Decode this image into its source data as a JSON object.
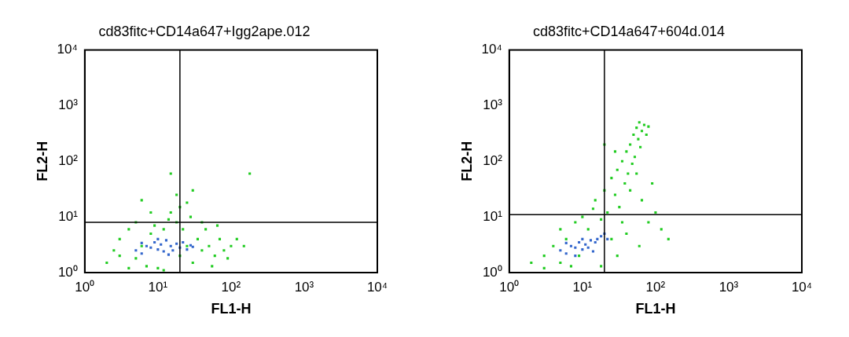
{
  "chart_data": [
    {
      "type": "scatter",
      "title": "cd83fitc+CD14a647+Igg2ape.012",
      "x_label": "FL1-H",
      "y_label": "FL2-H",
      "log": true,
      "grid": false,
      "marker": "square",
      "xlim": [
        1,
        10000
      ],
      "ylim": [
        1,
        10000
      ],
      "xticks": [
        {
          "value": 1,
          "label": "10⁰"
        },
        {
          "value": 10,
          "label": "10¹"
        },
        {
          "value": 100,
          "label": "10²"
        },
        {
          "value": 1000,
          "label": "10³"
        },
        {
          "value": 10000,
          "label": "10⁴"
        }
      ],
      "yticks": [
        {
          "value": 1,
          "label": "10⁰"
        },
        {
          "value": 10,
          "label": "10¹"
        },
        {
          "value": 100,
          "label": "10²"
        },
        {
          "value": 1000,
          "label": "10³"
        },
        {
          "value": 10000,
          "label": "10⁴"
        }
      ],
      "gates": {
        "x": 20,
        "y": 8
      },
      "series": [
        {
          "color": "#22cc22",
          "values": [
            [
              2,
              1.5
            ],
            [
              3,
              2
            ],
            [
              3,
              4
            ],
            [
              4,
              1.2
            ],
            [
              4,
              6
            ],
            [
              5,
              1.8
            ],
            [
              5,
              8
            ],
            [
              6,
              3
            ],
            [
              7,
              1.3
            ],
            [
              8,
              5
            ],
            [
              9,
              7
            ],
            [
              10,
              1.2
            ],
            [
              12,
              6
            ],
            [
              14,
              9
            ],
            [
              15,
              12
            ],
            [
              18,
              8
            ],
            [
              20,
              2
            ],
            [
              22,
              6
            ],
            [
              25,
              3
            ],
            [
              28,
              10
            ],
            [
              30,
              1.5
            ],
            [
              35,
              4
            ],
            [
              40,
              2.5
            ],
            [
              45,
              6
            ],
            [
              50,
              3
            ],
            [
              60,
              2
            ],
            [
              70,
              4
            ],
            [
              80,
              2.5
            ],
            [
              100,
              3
            ],
            [
              120,
              4
            ],
            [
              150,
              3
            ],
            [
              18,
              25
            ],
            [
              20,
              15
            ],
            [
              6,
              20
            ],
            [
              15,
              60
            ],
            [
              180,
              60
            ],
            [
              40,
              8
            ],
            [
              55,
              1.3
            ],
            [
              2.5,
              2.5
            ],
            [
              12,
              1.1
            ],
            [
              25,
              18
            ],
            [
              65,
              7
            ],
            [
              90,
              1.8
            ],
            [
              30,
              30
            ],
            [
              8,
              12
            ]
          ]
        },
        {
          "color": "#3366cc",
          "values": [
            [
              5,
              2.5
            ],
            [
              6,
              2.2
            ],
            [
              7,
              3
            ],
            [
              8,
              2.8
            ],
            [
              9,
              3.5
            ],
            [
              10,
              2.6
            ],
            [
              11,
              3.2
            ],
            [
              12,
              2.4
            ],
            [
              13,
              3.8
            ],
            [
              15,
              3
            ],
            [
              16,
              2.5
            ],
            [
              18,
              3.3
            ],
            [
              20,
              2.8
            ],
            [
              22,
              3.5
            ],
            [
              25,
              2.6
            ],
            [
              28,
              3.1
            ],
            [
              30,
              2.9
            ],
            [
              14,
              2.1
            ],
            [
              10,
              4
            ],
            [
              6,
              3.4
            ]
          ]
        }
      ]
    },
    {
      "type": "scatter",
      "title": "cd83fitc+CD14a647+604d.014",
      "x_label": "FL1-H",
      "y_label": "FL2-H",
      "log": true,
      "grid": false,
      "marker": "square",
      "xlim": [
        1,
        10000
      ],
      "ylim": [
        1,
        10000
      ],
      "xticks": [
        {
          "value": 1,
          "label": "10⁰"
        },
        {
          "value": 10,
          "label": "10¹"
        },
        {
          "value": 100,
          "label": "10²"
        },
        {
          "value": 1000,
          "label": "10³"
        },
        {
          "value": 10000,
          "label": "10⁴"
        }
      ],
      "yticks": [
        {
          "value": 1,
          "label": "10⁰"
        },
        {
          "value": 10,
          "label": "10¹"
        },
        {
          "value": 100,
          "label": "10²"
        },
        {
          "value": 1000,
          "label": "10³"
        },
        {
          "value": 10000,
          "label": "10⁴"
        }
      ],
      "gates": {
        "x": 20,
        "y": 11
      },
      "series": [
        {
          "color": "#22cc22",
          "values": [
            [
              2,
              1.5
            ],
            [
              3,
              2
            ],
            [
              3,
              1.2
            ],
            [
              4,
              3
            ],
            [
              5,
              1.5
            ],
            [
              5,
              6
            ],
            [
              6,
              4
            ],
            [
              7,
              1.3
            ],
            [
              8,
              8
            ],
            [
              9,
              2
            ],
            [
              10,
              10
            ],
            [
              12,
              6
            ],
            [
              14,
              14
            ],
            [
              15,
              20
            ],
            [
              18,
              9
            ],
            [
              20,
              30
            ],
            [
              22,
              12
            ],
            [
              25,
              50
            ],
            [
              28,
              25
            ],
            [
              30,
              70
            ],
            [
              32,
              15
            ],
            [
              35,
              100
            ],
            [
              38,
              40
            ],
            [
              40,
              150
            ],
            [
              42,
              60
            ],
            [
              45,
              200
            ],
            [
              48,
              90
            ],
            [
              50,
              300
            ],
            [
              52,
              120
            ],
            [
              55,
              400
            ],
            [
              58,
              250
            ],
            [
              60,
              500
            ],
            [
              62,
              180
            ],
            [
              65,
              350
            ],
            [
              70,
              450
            ],
            [
              75,
              300
            ],
            [
              80,
              420
            ],
            [
              45,
              30
            ],
            [
              55,
              60
            ],
            [
              35,
              8
            ],
            [
              40,
              5
            ],
            [
              60,
              3
            ],
            [
              80,
              8
            ],
            [
              100,
              12
            ],
            [
              120,
              6
            ],
            [
              150,
              4
            ],
            [
              25,
              4
            ],
            [
              30,
              2
            ],
            [
              18,
              1.3
            ],
            [
              20,
              200
            ],
            [
              28,
              150
            ],
            [
              65,
              20
            ],
            [
              90,
              40
            ]
          ]
        },
        {
          "color": "#3366cc",
          "values": [
            [
              5,
              2.5
            ],
            [
              6,
              2.2
            ],
            [
              7,
              3
            ],
            [
              8,
              2.8
            ],
            [
              9,
              3.5
            ],
            [
              10,
              2.6
            ],
            [
              11,
              3.2
            ],
            [
              12,
              2.8
            ],
            [
              13,
              3.8
            ],
            [
              15,
              3.5
            ],
            [
              16,
              4
            ],
            [
              18,
              4.5
            ],
            [
              20,
              5
            ],
            [
              14,
              2.4
            ],
            [
              10,
              4
            ],
            [
              6,
              3.4
            ],
            [
              22,
              4
            ],
            [
              8,
              2
            ]
          ]
        }
      ]
    }
  ]
}
